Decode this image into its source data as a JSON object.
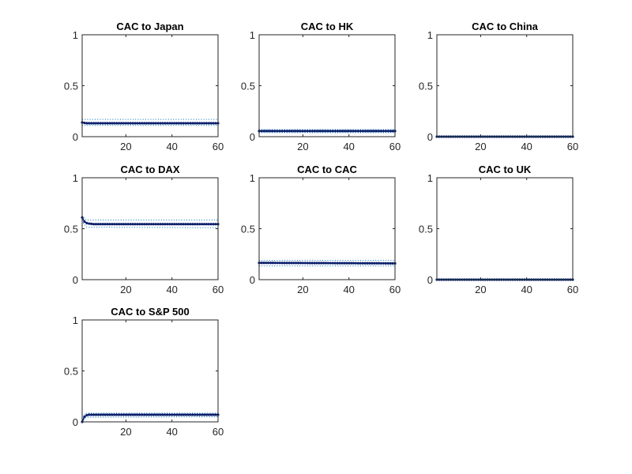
{
  "chart_data": [
    {
      "type": "line",
      "title": "CAC to Japan",
      "xlim": [
        1,
        60
      ],
      "ylim": [
        0,
        1
      ],
      "xticks": [
        "20",
        "40",
        "60"
      ],
      "yticks": [
        "0",
        "0.5",
        "1"
      ],
      "grid": false,
      "series": [
        {
          "role": "estimate",
          "style": "solid-markers",
          "points": [
            [
              1,
              0.14
            ],
            [
              2,
              0.135
            ],
            [
              3,
              0.132
            ],
            [
              60,
              0.132
            ]
          ]
        },
        {
          "role": "upper",
          "style": "dotted",
          "points": [
            [
              1,
              0.17
            ],
            [
              60,
              0.17
            ]
          ]
        },
        {
          "role": "lower",
          "style": "dotted",
          "points": [
            [
              1,
              0.11
            ],
            [
              60,
              0.11
            ]
          ]
        }
      ]
    },
    {
      "type": "line",
      "title": "CAC to HK",
      "xlim": [
        1,
        60
      ],
      "ylim": [
        0,
        1
      ],
      "xticks": [
        "20",
        "40",
        "60"
      ],
      "yticks": [
        "0",
        "0.5",
        "1"
      ],
      "grid": false,
      "series": [
        {
          "role": "estimate",
          "style": "solid-markers",
          "points": [
            [
              1,
              0.055
            ],
            [
              60,
              0.055
            ]
          ]
        },
        {
          "role": "upper",
          "style": "dotted",
          "points": [
            [
              1,
              0.07
            ],
            [
              60,
              0.07
            ]
          ]
        },
        {
          "role": "lower",
          "style": "dotted",
          "points": [
            [
              1,
              0.04
            ],
            [
              60,
              0.04
            ]
          ]
        }
      ]
    },
    {
      "type": "line",
      "title": "CAC to China",
      "xlim": [
        1,
        60
      ],
      "ylim": [
        0,
        1
      ],
      "xticks": [
        "20",
        "40",
        "60"
      ],
      "yticks": [
        "0",
        "0.5",
        "1"
      ],
      "grid": false,
      "series": [
        {
          "role": "estimate",
          "style": "solid-markers",
          "points": [
            [
              1,
              0.0
            ],
            [
              60,
              0.0
            ]
          ]
        },
        {
          "role": "upper",
          "style": "dotted",
          "points": [
            [
              1,
              0.004
            ],
            [
              60,
              0.004
            ]
          ]
        },
        {
          "role": "lower",
          "style": "dotted",
          "points": [
            [
              1,
              -0.002
            ],
            [
              60,
              -0.002
            ]
          ]
        }
      ]
    },
    {
      "type": "line",
      "title": "CAC to DAX",
      "xlim": [
        1,
        60
      ],
      "ylim": [
        0,
        1
      ],
      "xticks": [
        "20",
        "40",
        "60"
      ],
      "yticks": [
        "0",
        "0.5",
        "1"
      ],
      "grid": false,
      "series": [
        {
          "role": "estimate",
          "style": "solid-markers",
          "points": [
            [
              1,
              0.61
            ],
            [
              2,
              0.57
            ],
            [
              3,
              0.555
            ],
            [
              4,
              0.55
            ],
            [
              6,
              0.545
            ],
            [
              60,
              0.545
            ]
          ]
        },
        {
          "role": "upper",
          "style": "dotted",
          "points": [
            [
              1,
              0.63
            ],
            [
              2,
              0.6
            ],
            [
              3,
              0.585
            ],
            [
              60,
              0.585
            ]
          ]
        },
        {
          "role": "lower",
          "style": "dotted",
          "points": [
            [
              1,
              0.58
            ],
            [
              2,
              0.54
            ],
            [
              3,
              0.515
            ],
            [
              60,
              0.51
            ]
          ]
        }
      ]
    },
    {
      "type": "line",
      "title": "CAC to CAC",
      "xlim": [
        1,
        60
      ],
      "ylim": [
        0,
        1
      ],
      "xticks": [
        "20",
        "40",
        "60"
      ],
      "yticks": [
        "0",
        "0.5",
        "1"
      ],
      "grid": false,
      "series": [
        {
          "role": "estimate",
          "style": "solid-markers",
          "points": [
            [
              1,
              0.165
            ],
            [
              60,
              0.16
            ]
          ]
        },
        {
          "role": "upper",
          "style": "dotted",
          "points": [
            [
              1,
              0.19
            ],
            [
              60,
              0.19
            ]
          ]
        },
        {
          "role": "lower",
          "style": "dotted",
          "points": [
            [
              1,
              0.135
            ],
            [
              60,
              0.135
            ]
          ]
        }
      ]
    },
    {
      "type": "line",
      "title": "CAC to UK",
      "xlim": [
        1,
        60
      ],
      "ylim": [
        0,
        1
      ],
      "xticks": [
        "20",
        "40",
        "60"
      ],
      "yticks": [
        "0",
        "0.5",
        "1"
      ],
      "grid": false,
      "series": [
        {
          "role": "estimate",
          "style": "solid-markers",
          "points": [
            [
              1,
              0.0
            ],
            [
              60,
              0.0
            ]
          ]
        },
        {
          "role": "upper",
          "style": "dotted",
          "points": [
            [
              1,
              0.004
            ],
            [
              60,
              0.004
            ]
          ]
        },
        {
          "role": "lower",
          "style": "dotted",
          "points": [
            [
              1,
              -0.002
            ],
            [
              60,
              -0.002
            ]
          ]
        }
      ]
    },
    {
      "type": "line",
      "title": "CAC to S&P 500",
      "xlim": [
        1,
        60
      ],
      "ylim": [
        0,
        1
      ],
      "xticks": [
        "20",
        "40",
        "60"
      ],
      "yticks": [
        "0",
        "0.5",
        "1"
      ],
      "grid": false,
      "series": [
        {
          "role": "estimate",
          "style": "solid-markers",
          "points": [
            [
              1,
              0.0
            ],
            [
              2,
              0.05
            ],
            [
              3,
              0.065
            ],
            [
              4,
              0.07
            ],
            [
              60,
              0.07
            ]
          ]
        },
        {
          "role": "upper",
          "style": "dotted",
          "points": [
            [
              1,
              0.02
            ],
            [
              2,
              0.075
            ],
            [
              3,
              0.085
            ],
            [
              60,
              0.085
            ]
          ]
        },
        {
          "role": "lower",
          "style": "dotted",
          "points": [
            [
              1,
              0.0
            ],
            [
              2,
              0.03
            ],
            [
              3,
              0.045
            ],
            [
              60,
              0.05
            ]
          ]
        }
      ]
    }
  ],
  "colors": {
    "estimate": "#0b1f6b",
    "band": "#0072bd",
    "axis": "#262626"
  }
}
